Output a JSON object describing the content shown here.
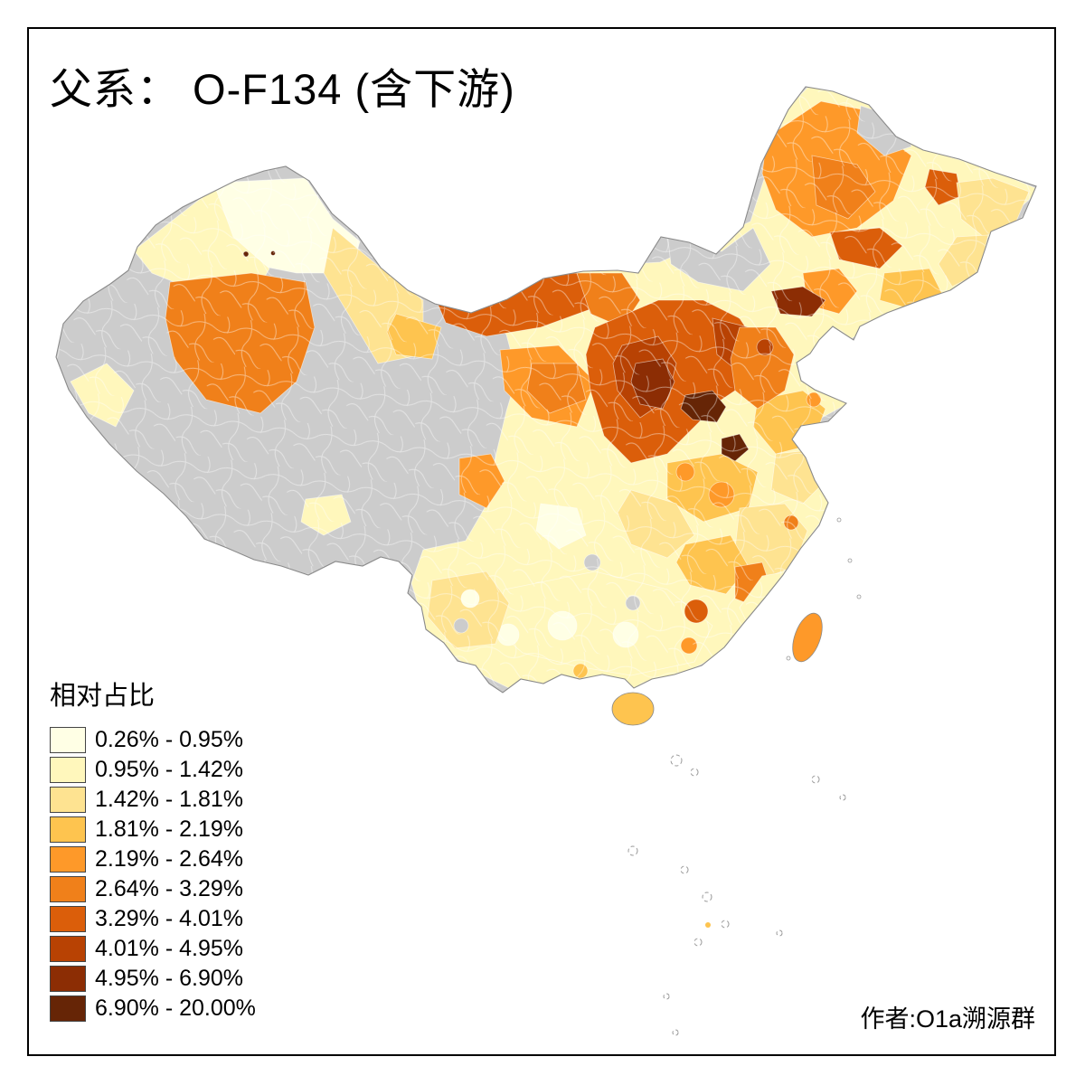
{
  "title": "父系： O-F134 (含下游)",
  "legend": {
    "title": "相对占比",
    "classes": [
      {
        "label": "0.26% - 0.95%",
        "color": "#FFFFE5"
      },
      {
        "label": "0.95% - 1.42%",
        "color": "#FFF7BC"
      },
      {
        "label": "1.42% - 1.81%",
        "color": "#FEE391"
      },
      {
        "label": "1.81% - 2.19%",
        "color": "#FEC44F"
      },
      {
        "label": "2.19% - 2.64%",
        "color": "#FE9929"
      },
      {
        "label": "2.64% - 3.29%",
        "color": "#F0801A"
      },
      {
        "label": "3.29% - 4.01%",
        "color": "#DB5E0A"
      },
      {
        "label": "4.01% - 4.95%",
        "color": "#B84203"
      },
      {
        "label": "4.95% - 6.90%",
        "color": "#8C2D04"
      },
      {
        "label": "6.90% - 20.00%",
        "color": "#662506"
      }
    ]
  },
  "author": "作者:O1a溯源群",
  "map": {
    "type": "choropleth",
    "no_data_color": "#CCCCCC",
    "boundary_color": "#FFFFFF",
    "outline_color": "#8A8A8A"
  }
}
